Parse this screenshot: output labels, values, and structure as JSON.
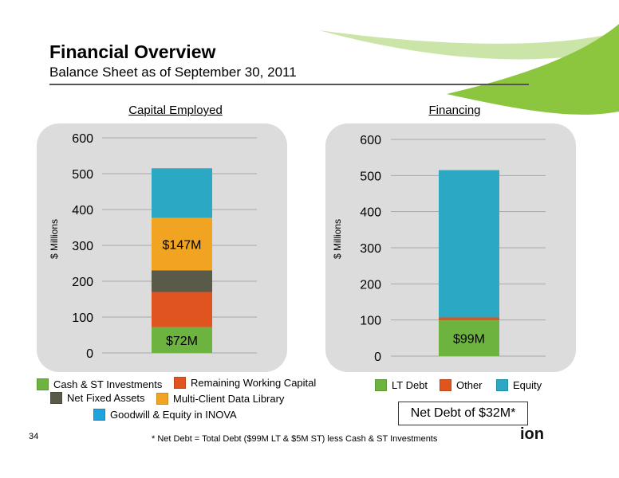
{
  "header": {
    "title": "Financial Overview",
    "subtitle": "Balance Sheet as of September 30, 2011"
  },
  "colors": {
    "cash": "#6db33f",
    "remaining_wc": "#e0541f",
    "net_fixed": "#5a5a48",
    "multi_client": "#f0a422",
    "goodwill": "#2ba8c3",
    "lt_debt": "#6db33f",
    "other": "#e0541f",
    "equity": "#2ba8c3",
    "accent_green": "#8cc63f"
  },
  "chart_data": [
    {
      "type": "bar",
      "stacked": true,
      "title": "Capital Employed",
      "ylabel": "$ Millions",
      "ylim": [
        0,
        600
      ],
      "yticks": [
        0,
        100,
        200,
        300,
        400,
        500,
        600
      ],
      "series": [
        {
          "name": "Cash & ST Investments",
          "values": [
            72
          ],
          "color": "#6db33f",
          "data_label": "$72M"
        },
        {
          "name": "Remaining Working Capital",
          "values": [
            98
          ],
          "color": "#e0541f",
          "data_label": ""
        },
        {
          "name": "Net Fixed Assets",
          "values": [
            60
          ],
          "color": "#5a5a48",
          "data_label": ""
        },
        {
          "name": "Multi-Client Data Library",
          "values": [
            147
          ],
          "color": "#f0a422",
          "data_label": "$147M"
        },
        {
          "name": "Goodwill & Equity in INOVA",
          "values": [
            138
          ],
          "color": "#2ba8c3",
          "data_label": ""
        }
      ]
    },
    {
      "type": "bar",
      "stacked": true,
      "title": "Financing",
      "ylabel": "$ Millions",
      "ylim": [
        0,
        600
      ],
      "yticks": [
        0,
        100,
        200,
        300,
        400,
        500,
        600
      ],
      "series": [
        {
          "name": "LT Debt",
          "values": [
            99
          ],
          "color": "#6db33f",
          "data_label": "$99M"
        },
        {
          "name": "Other",
          "values": [
            8
          ],
          "color": "#e0541f",
          "data_label": ""
        },
        {
          "name": "Equity",
          "values": [
            408
          ],
          "color": "#2ba8c3",
          "data_label": ""
        }
      ]
    }
  ],
  "net_debt_box": "Net Debt of $32M*",
  "footnote": "* Net Debt = Total Debt ($99M LT & $5M ST) less Cash & ST Investments",
  "page_number": "34",
  "logo_text": "ion"
}
